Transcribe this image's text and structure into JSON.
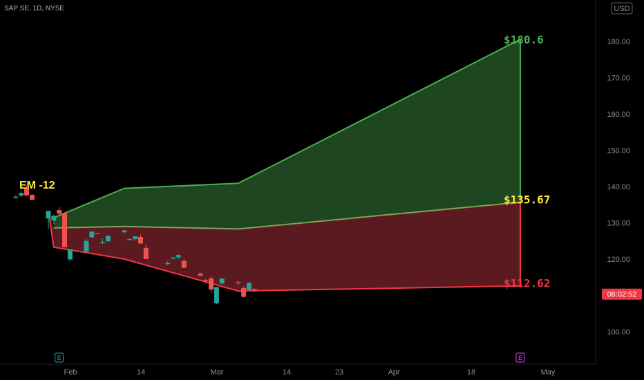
{
  "symbol_title": "SAP SE, 1D, NYSE",
  "currency": "USD",
  "countdown": "06:02:52",
  "em_label": "EM -12",
  "colors": {
    "background": "#000000",
    "up": "#26a69a",
    "down": "#ef5350",
    "green_zone_fill": "#1e4620",
    "green_zone_line": "#4caf50",
    "red_zone_fill": "#5b1a1f",
    "red_zone_line": "#f23645",
    "mid_label": "#ffeb3b",
    "axis_text": "#8a8e99"
  },
  "chart_data": {
    "type": "candlestick",
    "y_axis_ticks": [
      "180.00",
      "170.00",
      "160.00",
      "150.00",
      "140.00",
      "130.00",
      "120.00",
      "110.00",
      "100.00"
    ],
    "x_axis_ticks": [
      "Feb",
      "14",
      "Mar",
      "14",
      "23",
      "Apr",
      "18",
      "May"
    ],
    "ylim": [
      96,
      190
    ],
    "candles": [
      {
        "d": "2025-01-21",
        "o": 137.0,
        "h": 137.6,
        "l": 136.7,
        "c": 137.2
      },
      {
        "d": "2025-01-22",
        "o": 137.5,
        "h": 138.7,
        "l": 137.0,
        "c": 138.2
      },
      {
        "d": "2025-01-23",
        "o": 139.6,
        "h": 140.3,
        "l": 137.3,
        "c": 137.6
      },
      {
        "d": "2025-01-24",
        "o": 137.7,
        "h": 138.0,
        "l": 136.3,
        "c": 136.3
      },
      {
        "d": "2025-01-27",
        "o": 131.2,
        "h": 133.3,
        "l": 128.3,
        "c": 133.3
      },
      {
        "d": "2025-01-28",
        "o": 130.6,
        "h": 132.3,
        "l": 129.6,
        "c": 131.9
      },
      {
        "d": "2025-01-29",
        "o": 133.5,
        "h": 134.3,
        "l": 132.1,
        "c": 132.5
      },
      {
        "d": "2025-01-30",
        "o": 132.6,
        "h": 132.9,
        "l": 123.2,
        "c": 123.3
      },
      {
        "d": "2025-01-31",
        "o": 119.9,
        "h": 122.6,
        "l": 119.4,
        "c": 122.6
      },
      {
        "d": "2025-02-03",
        "o": 122.0,
        "h": 125.7,
        "l": 121.8,
        "c": 125.0
      },
      {
        "d": "2025-02-04",
        "o": 126.0,
        "h": 127.6,
        "l": 125.8,
        "c": 127.6
      },
      {
        "d": "2025-02-05",
        "o": 127.2,
        "h": 127.2,
        "l": 127.0,
        "c": 127.1
      },
      {
        "d": "2025-02-06",
        "o": 124.6,
        "h": 125.6,
        "l": 124.2,
        "c": 124.7
      },
      {
        "d": "2025-02-07",
        "o": 124.9,
        "h": 126.6,
        "l": 124.8,
        "c": 126.4
      },
      {
        "d": "2025-02-10",
        "o": 127.4,
        "h": 128.0,
        "l": 127.0,
        "c": 127.9
      },
      {
        "d": "2025-02-11",
        "o": 125.3,
        "h": 125.8,
        "l": 125.2,
        "c": 125.5
      },
      {
        "d": "2025-02-12",
        "o": 125.5,
        "h": 126.2,
        "l": 125.0,
        "c": 126.3
      },
      {
        "d": "2025-02-13",
        "o": 126.1,
        "h": 126.8,
        "l": 124.1,
        "c": 124.3
      },
      {
        "d": "2025-02-14",
        "o": 123.1,
        "h": 124.2,
        "l": 120.0,
        "c": 120.0
      },
      {
        "d": "2025-02-18",
        "o": 118.9,
        "h": 119.5,
        "l": 118.3,
        "c": 118.9
      },
      {
        "d": "2025-02-19",
        "o": 120.1,
        "h": 120.6,
        "l": 119.9,
        "c": 120.4
      },
      {
        "d": "2025-02-20",
        "o": 120.5,
        "h": 121.3,
        "l": 120.0,
        "c": 121.1
      },
      {
        "d": "2025-02-21",
        "o": 119.5,
        "h": 119.9,
        "l": 117.6,
        "c": 117.6
      },
      {
        "d": "2025-02-24",
        "o": 116.0,
        "h": 116.3,
        "l": 115.2,
        "c": 115.4
      },
      {
        "d": "2025-02-25",
        "o": 114.2,
        "h": 114.6,
        "l": 113.2,
        "c": 114.0
      },
      {
        "d": "2025-02-26",
        "o": 114.7,
        "h": 115.2,
        "l": 110.8,
        "c": 111.6
      },
      {
        "d": "2025-02-27",
        "o": 107.8,
        "h": 112.3,
        "l": 107.6,
        "c": 112.3
      },
      {
        "d": "2025-02-28",
        "o": 113.3,
        "h": 114.8,
        "l": 112.9,
        "c": 114.6
      },
      {
        "d": "2025-03-03",
        "o": 113.6,
        "h": 114.1,
        "l": 112.7,
        "c": 113.4
      },
      {
        "d": "2025-03-04",
        "o": 112.0,
        "h": 112.5,
        "l": 109.4,
        "c": 109.6
      },
      {
        "d": "2025-03-05",
        "o": 111.5,
        "h": 113.7,
        "l": 111.2,
        "c": 113.4
      },
      {
        "d": "2025-03-06",
        "o": 111.7,
        "h": 111.9,
        "l": 111.0,
        "c": 111.2
      }
    ],
    "zones": {
      "upper": [
        {
          "d": "2025-01-28",
          "v": 131.4
        },
        {
          "d": "2025-02-10",
          "v": 139.5
        },
        {
          "d": "2025-03-03",
          "v": 140.9
        },
        {
          "d": "2025-04-24",
          "v": 180.6
        }
      ],
      "middle": [
        {
          "d": "2025-01-28",
          "v": 128.6
        },
        {
          "d": "2025-02-10",
          "v": 129.0
        },
        {
          "d": "2025-03-03",
          "v": 128.3
        },
        {
          "d": "2025-04-24",
          "v": 135.67
        }
      ],
      "lower": [
        {
          "d": "2025-01-27",
          "v": 133.3
        },
        {
          "d": "2025-01-28",
          "v": 123.3
        },
        {
          "d": "2025-02-10",
          "v": 120.0
        },
        {
          "d": "2025-03-03",
          "v": 111.2
        },
        {
          "d": "2025-04-24",
          "v": 112.62
        }
      ]
    },
    "labels": {
      "upper": "$180.6",
      "middle": "$135.67",
      "lower": "$112.62"
    },
    "event_markers": [
      {
        "d": "2025-01-29",
        "label": "E"
      },
      {
        "d": "2025-04-24",
        "label": "E"
      }
    ]
  }
}
